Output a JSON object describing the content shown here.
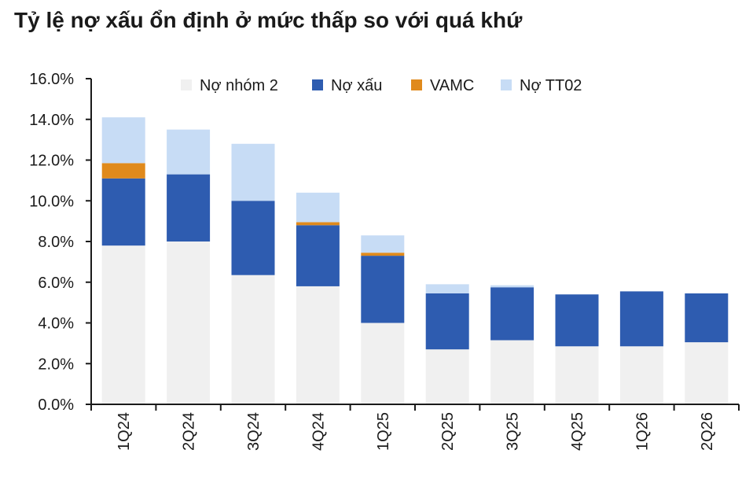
{
  "title": "Tỷ lệ nợ xấu ổn định ở mức thấp so với quá khứ",
  "colors": {
    "no_nhom_2": "#f0f0f0",
    "no_xau": "#2e5cb0",
    "vamc": "#e08a1c",
    "no_tt02": "#c7dcf5",
    "axis": "#1a1a1a"
  },
  "chart_data": {
    "type": "bar",
    "stacked": true,
    "title": "Tỷ lệ nợ xấu ổn định ở mức thấp so với quá khứ",
    "xlabel": "",
    "ylabel": "",
    "ylim": [
      0,
      16
    ],
    "y_ticks": [
      "0.0%",
      "2.0%",
      "4.0%",
      "6.0%",
      "8.0%",
      "10.0%",
      "12.0%",
      "14.0%",
      "16.0%"
    ],
    "grid": false,
    "legend_position": "top",
    "categories": [
      "1Q24",
      "2Q24",
      "3Q24",
      "4Q24",
      "1Q25",
      "2Q25",
      "3Q25",
      "4Q25",
      "1Q26",
      "2Q26"
    ],
    "series": [
      {
        "name": "Nợ nhóm 2",
        "key": "no_nhom_2",
        "values": [
          7.8,
          8.0,
          6.35,
          5.8,
          4.0,
          2.7,
          3.15,
          2.85,
          2.85,
          3.05
        ]
      },
      {
        "name": "Nợ xấu",
        "key": "no_xau",
        "values": [
          3.3,
          3.3,
          3.65,
          3.0,
          3.3,
          2.75,
          2.6,
          2.55,
          2.7,
          2.4
        ]
      },
      {
        "name": "VAMC",
        "key": "vamc",
        "values": [
          0.75,
          0.0,
          0.0,
          0.15,
          0.15,
          0.0,
          0.0,
          0.0,
          0.0,
          0.0
        ]
      },
      {
        "name": "Nợ TT02",
        "key": "no_tt02",
        "values": [
          2.25,
          2.2,
          2.8,
          1.45,
          0.85,
          0.45,
          0.1,
          0.0,
          0.0,
          0.0
        ]
      }
    ]
  }
}
